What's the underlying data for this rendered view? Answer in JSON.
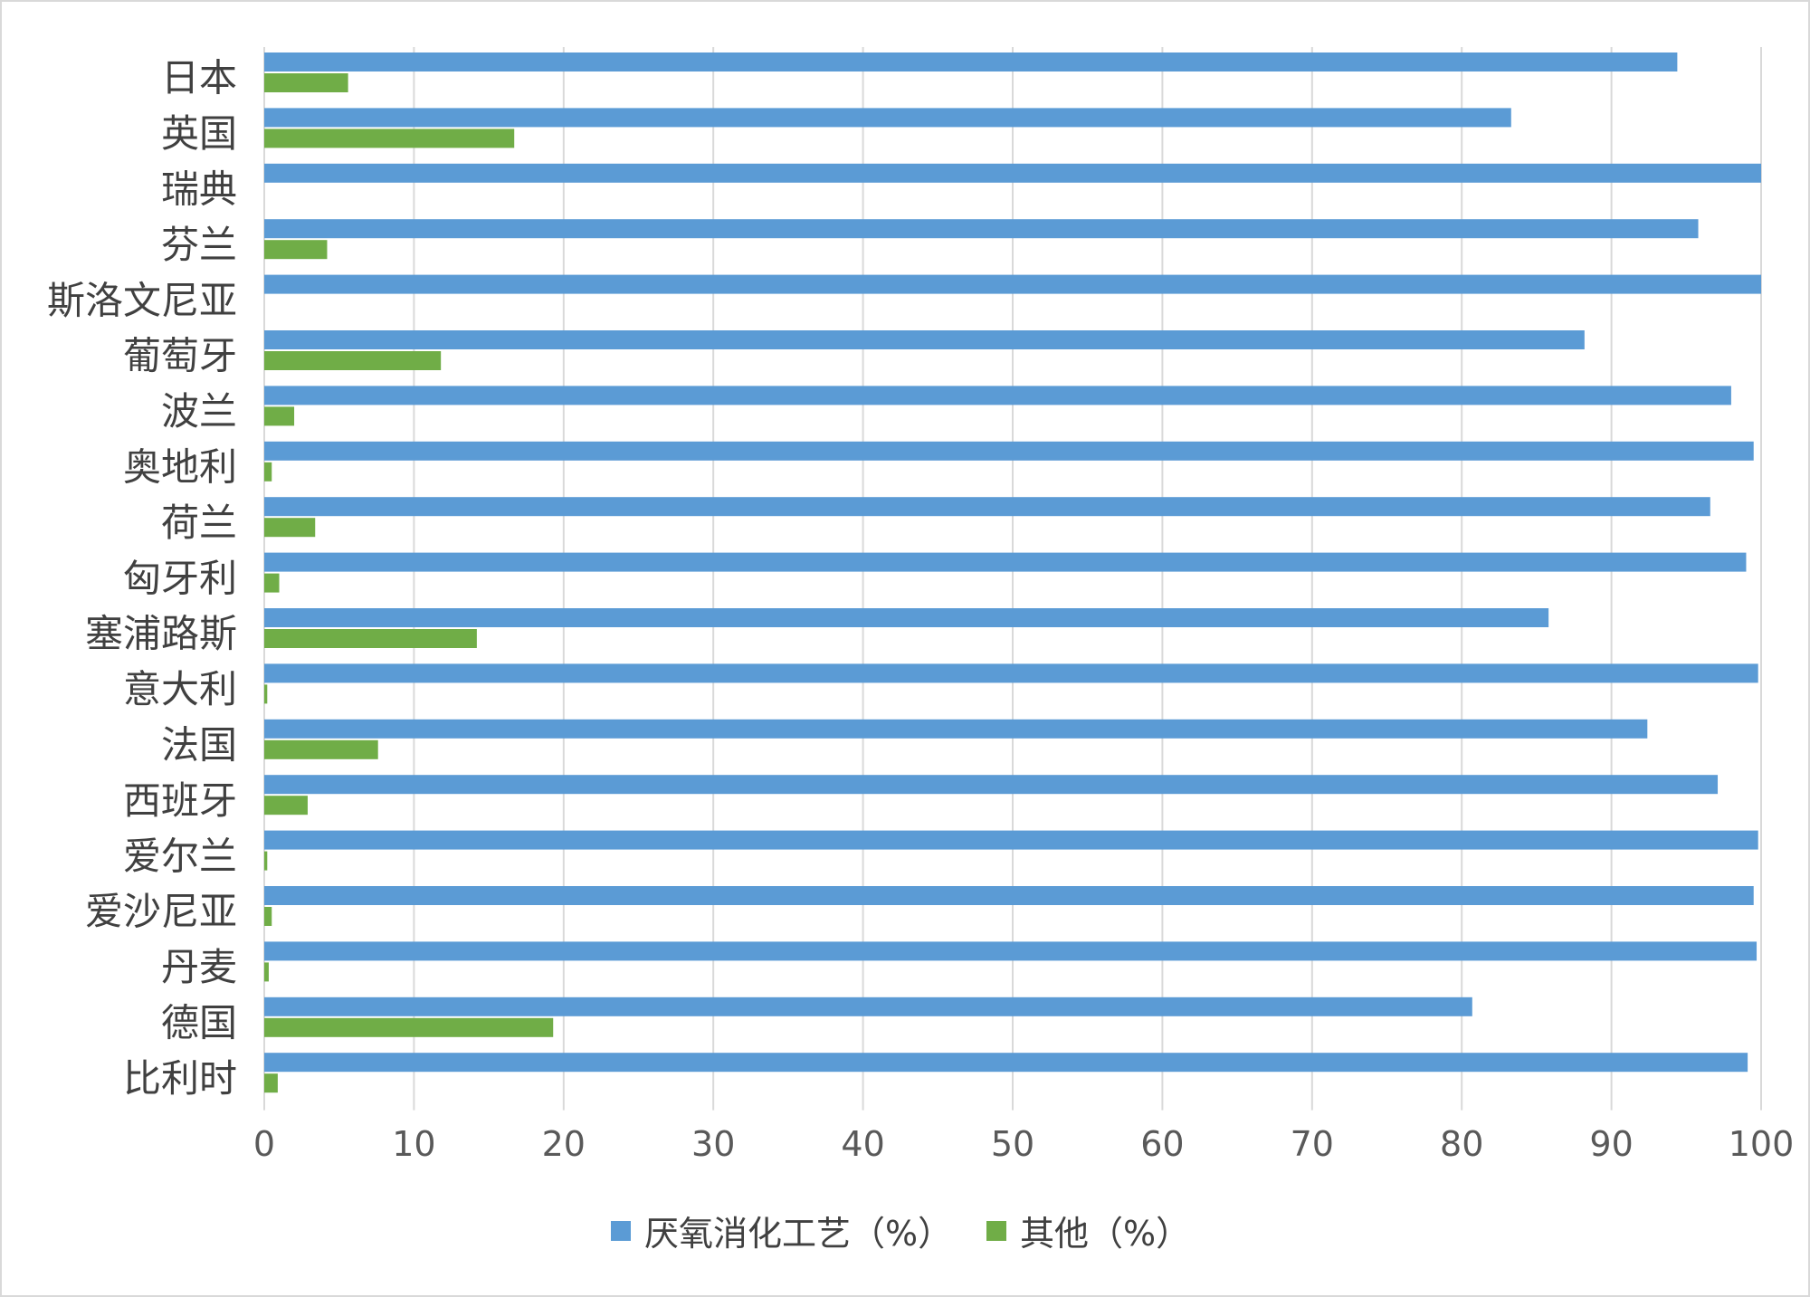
{
  "chart_data": {
    "type": "bar",
    "orientation": "horizontal",
    "categories": [
      "日本",
      "英国",
      "瑞典",
      "芬兰",
      "斯洛文尼亚",
      "葡萄牙",
      "波兰",
      "奥地利",
      "荷兰",
      "匈牙利",
      "塞浦路斯",
      "意大利",
      "法国",
      "西班牙",
      "爱尔兰",
      "爱沙尼亚",
      "丹麦",
      "德国",
      "比利时"
    ],
    "series": [
      {
        "name": "厌氧消化工艺（%）",
        "color": "#5b9bd5",
        "values": [
          94.4,
          83.3,
          100,
          95.8,
          100,
          88.2,
          98.0,
          99.5,
          96.6,
          99.0,
          85.8,
          99.8,
          92.4,
          97.1,
          99.8,
          99.5,
          99.7,
          80.7,
          99.1
        ]
      },
      {
        "name": "其他（%）",
        "color": "#70ad47",
        "values": [
          5.6,
          16.7,
          0,
          4.2,
          0,
          11.8,
          2.0,
          0.5,
          3.4,
          1.0,
          14.2,
          0.2,
          7.6,
          2.9,
          0.2,
          0.5,
          0.3,
          19.3,
          0.9
        ]
      }
    ],
    "xlim": [
      0,
      100
    ],
    "xticks": [
      0,
      10,
      20,
      30,
      40,
      50,
      60,
      70,
      80,
      90,
      100
    ],
    "grid": true,
    "legend_position": "bottom",
    "title": "",
    "xlabel": "",
    "ylabel": ""
  }
}
